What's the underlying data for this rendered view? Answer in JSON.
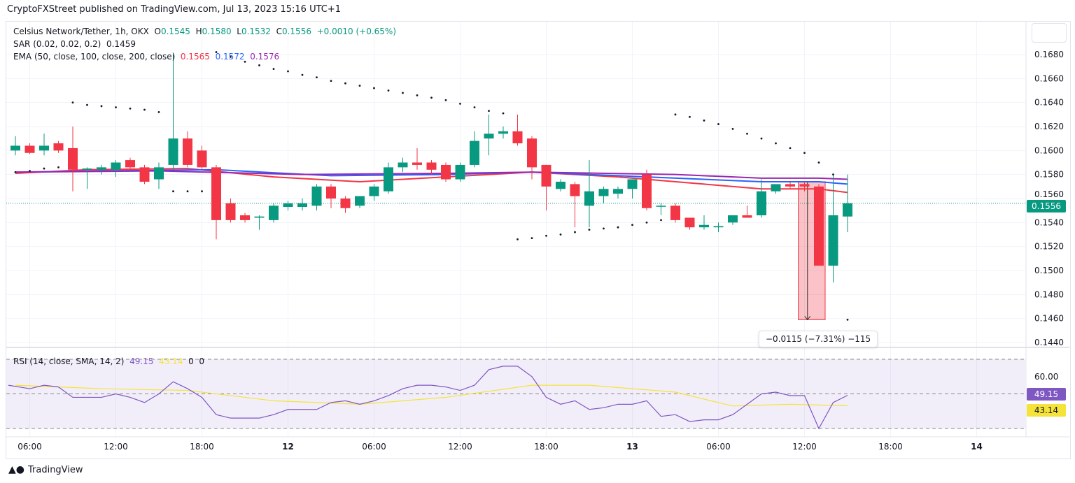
{
  "header": {
    "publisher": "CryptoFXStreet published on TradingView.com, Jul 13, 2023 15:16 UTC+1"
  },
  "legend": {
    "symbol": "Celsius Network/Tether, 1h, OKX",
    "o_label": "O",
    "o": "0.1545",
    "h_label": "H",
    "h": "0.1580",
    "l_label": "L",
    "l": "0.1532",
    "c_label": "C",
    "c": "0.1556",
    "change": "+0.0010 (+0.65%)",
    "sar_label": "SAR (0.02, 0.02, 0.2)",
    "sar": "0.1459",
    "ema_label": "EMA (50, close, 100, close, 200, close)",
    "ema50": "0.1565",
    "ema100": "0.1572",
    "ema200": "0.1576",
    "rsi_label": "RSI (14, close, SMA, 14, 2)",
    "rsi": "49.15",
    "rsi_sma": "43.14",
    "rsi_x1": "0",
    "rsi_x2": "0"
  },
  "measure": {
    "text": "−0.0115 (−7.31%) −115"
  },
  "price_tag": "0.1556",
  "rsi_tag": "49.15",
  "rsi_sma_tag": "43.14",
  "footer": {
    "brand": "TradingView"
  },
  "colors": {
    "up": "#089981",
    "down": "#f23645",
    "ema50": "#f23645",
    "ema100": "#2962ff",
    "ema200": "#9c27b0",
    "rsi": "#7e57c2",
    "rsi_sma": "#f5e33a"
  },
  "chart_data": [
    {
      "type": "candlestick",
      "title": "Celsius Network/Tether, 1h, OKX",
      "ylim": [
        0.1436,
        0.1692
      ],
      "y_ticks": [
        "0.1440",
        "0.1460",
        "0.1480",
        "0.1500",
        "0.1520",
        "0.1540",
        "0.1560",
        "0.1580",
        "0.1600",
        "0.1620",
        "0.1640",
        "0.1660",
        "0.1680"
      ],
      "x_ticks": [
        {
          "label": "06:00",
          "hour": 1
        },
        {
          "label": "12:00",
          "hour": 7
        },
        {
          "label": "18:00",
          "hour": 13
        },
        {
          "label": "12",
          "hour": 19
        },
        {
          "label": "06:00",
          "hour": 25
        },
        {
          "label": "12:00",
          "hour": 31
        },
        {
          "label": "18:00",
          "hour": 37
        },
        {
          "label": "13",
          "hour": 43
        },
        {
          "label": "06:00",
          "hour": 49
        },
        {
          "label": "12:00",
          "hour": 55
        },
        {
          "label": "18:00",
          "hour": 61
        },
        {
          "label": "14",
          "hour": 67
        }
      ],
      "ohlc": [
        [
          0.16,
          0.1612,
          0.1596,
          0.1604
        ],
        [
          0.1604,
          0.1606,
          0.1597,
          0.1598
        ],
        [
          0.16,
          0.1614,
          0.1596,
          0.1604
        ],
        [
          0.1606,
          0.1608,
          0.1598,
          0.16
        ],
        [
          0.1602,
          0.162,
          0.1566,
          0.1584
        ],
        [
          0.1584,
          0.1586,
          0.1568,
          0.1585
        ],
        [
          0.1584,
          0.1588,
          0.158,
          0.1586
        ],
        [
          0.1584,
          0.1592,
          0.1578,
          0.159
        ],
        [
          0.1592,
          0.1594,
          0.1584,
          0.1586
        ],
        [
          0.1586,
          0.1588,
          0.1572,
          0.1574
        ],
        [
          0.1576,
          0.159,
          0.1568,
          0.1586
        ],
        [
          0.1588,
          0.168,
          0.1584,
          0.161
        ],
        [
          0.161,
          0.1616,
          0.1586,
          0.1588
        ],
        [
          0.16,
          0.1604,
          0.1584,
          0.1586
        ],
        [
          0.1586,
          0.1588,
          0.1526,
          0.1542
        ],
        [
          0.1556,
          0.156,
          0.154,
          0.1542
        ],
        [
          0.1546,
          0.1548,
          0.154,
          0.1542
        ],
        [
          0.1544,
          0.1546,
          0.1534,
          0.1545
        ],
        [
          0.1542,
          0.1556,
          0.154,
          0.1554
        ],
        [
          0.1553,
          0.1558,
          0.155,
          0.1556
        ],
        [
          0.1553,
          0.156,
          0.155,
          0.1556
        ],
        [
          0.1554,
          0.1572,
          0.155,
          0.157
        ],
        [
          0.157,
          0.1572,
          0.1552,
          0.156
        ],
        [
          0.156,
          0.1562,
          0.1548,
          0.1552
        ],
        [
          0.1554,
          0.156,
          0.1552,
          0.1562
        ],
        [
          0.1562,
          0.1572,
          0.1558,
          0.157
        ],
        [
          0.1566,
          0.159,
          0.1564,
          0.1586
        ],
        [
          0.1586,
          0.1594,
          0.1582,
          0.159
        ],
        [
          0.159,
          0.1602,
          0.1584,
          0.1588
        ],
        [
          0.159,
          0.1592,
          0.158,
          0.1584
        ],
        [
          0.1588,
          0.159,
          0.1574,
          0.1576
        ],
        [
          0.1576,
          0.159,
          0.1574,
          0.1588
        ],
        [
          0.1588,
          0.1616,
          0.1586,
          0.1608
        ],
        [
          0.161,
          0.163,
          0.1596,
          0.1614
        ],
        [
          0.1614,
          0.162,
          0.161,
          0.1616
        ],
        [
          0.1616,
          0.163,
          0.1604,
          0.1606
        ],
        [
          0.161,
          0.1612,
          0.1576,
          0.1586
        ],
        [
          0.1588,
          0.1588,
          0.155,
          0.157
        ],
        [
          0.1568,
          0.1576,
          0.1566,
          0.1574
        ],
        [
          0.1572,
          0.1574,
          0.1536,
          0.1562
        ],
        [
          0.1554,
          0.1592,
          0.1536,
          0.1566
        ],
        [
          0.1562,
          0.157,
          0.1556,
          0.1568
        ],
        [
          0.1564,
          0.157,
          0.156,
          0.1568
        ],
        [
          0.1568,
          0.1576,
          0.156,
          0.1576
        ],
        [
          0.158,
          0.1584,
          0.155,
          0.1552
        ],
        [
          0.1554,
          0.1556,
          0.1546,
          0.1554
        ],
        [
          0.1554,
          0.1556,
          0.154,
          0.1542
        ],
        [
          0.1544,
          0.1544,
          0.1534,
          0.1536
        ],
        [
          0.1536,
          0.1546,
          0.1534,
          0.1538
        ],
        [
          0.1536,
          0.154,
          0.1532,
          0.1537
        ],
        [
          0.154,
          0.1546,
          0.1538,
          0.1546
        ],
        [
          0.1546,
          0.1554,
          0.1544,
          0.1544
        ],
        [
          0.1546,
          0.1576,
          0.1544,
          0.1566
        ],
        [
          0.1566,
          0.1572,
          0.1564,
          0.1572
        ],
        [
          0.1572,
          0.1574,
          0.1568,
          0.157
        ],
        [
          0.1572,
          0.1574,
          0.1566,
          0.157
        ],
        [
          0.157,
          0.1572,
          0.1504,
          0.1504
        ],
        [
          0.1504,
          0.158,
          0.149,
          0.1546
        ],
        [
          0.1545,
          0.158,
          0.1532,
          0.1556
        ]
      ],
      "sar": [
        0.1582,
        0.1583,
        0.1585,
        0.1586,
        0.164,
        0.1638,
        0.1637,
        0.1636,
        0.1635,
        0.1634,
        0.1632,
        0.1566,
        0.1566,
        0.1566,
        0.1682,
        0.1678,
        0.1674,
        0.1671,
        0.1668,
        0.1666,
        0.1663,
        0.1661,
        0.1658,
        0.1656,
        0.1654,
        0.1652,
        0.165,
        0.1648,
        0.1646,
        0.1644,
        0.1642,
        0.1639,
        0.1636,
        0.1633,
        0.1631,
        0.1526,
        0.1527,
        0.1529,
        0.153,
        0.1532,
        0.1534,
        0.1535,
        0.1536,
        0.1538,
        0.154,
        0.1542,
        0.163,
        0.1628,
        0.1625,
        0.1622,
        0.1618,
        0.1614,
        0.161,
        0.1606,
        0.1602,
        0.1598,
        0.159,
        0.158,
        0.1459
      ],
      "ema": [
        {
          "name": "EMA 50",
          "points": [
            [
              0,
              0.1581
            ],
            [
              5,
              0.1584
            ],
            [
              12,
              0.1585
            ],
            [
              18,
              0.1578
            ],
            [
              24,
              0.1574
            ],
            [
              30,
              0.1578
            ],
            [
              36,
              0.1582
            ],
            [
              42,
              0.1578
            ],
            [
              48,
              0.1572
            ],
            [
              52,
              0.1568
            ],
            [
              56,
              0.1568
            ],
            [
              58,
              0.1565
            ]
          ]
        },
        {
          "name": "EMA 100",
          "points": [
            [
              0,
              0.1582
            ],
            [
              6,
              0.1583
            ],
            [
              14,
              0.1584
            ],
            [
              22,
              0.1579
            ],
            [
              30,
              0.158
            ],
            [
              36,
              0.1582
            ],
            [
              44,
              0.1578
            ],
            [
              52,
              0.1574
            ],
            [
              56,
              0.1574
            ],
            [
              58,
              0.1572
            ]
          ]
        },
        {
          "name": "EMA 200",
          "points": [
            [
              0,
              0.1582
            ],
            [
              10,
              0.1583
            ],
            [
              20,
              0.158
            ],
            [
              30,
              0.1581
            ],
            [
              36,
              0.1582
            ],
            [
              46,
              0.158
            ],
            [
              52,
              0.1577
            ],
            [
              56,
              0.1577
            ],
            [
              58,
              0.1576
            ]
          ]
        }
      ],
      "measure": {
        "from_hour": 55,
        "to_hour": 56,
        "from": 0.1574,
        "to": 0.1459
      }
    },
    {
      "type": "line",
      "title": "RSI (14, close, SMA, 14, 2)",
      "ylim": [
        26,
        74
      ],
      "y_ticks": [
        "60.00"
      ],
      "bands": [
        70,
        50,
        30
      ],
      "rsi": [
        55,
        53,
        55,
        54,
        48,
        48,
        48,
        50,
        48,
        45,
        50,
        57,
        53,
        48,
        38,
        36,
        36,
        36,
        38,
        41,
        41,
        41,
        45,
        46,
        44,
        46,
        49,
        53,
        55,
        55,
        54,
        52,
        55,
        64,
        66,
        66,
        60,
        48,
        44,
        46,
        41,
        42,
        44,
        44,
        46,
        37,
        38,
        34,
        35,
        35,
        38,
        44,
        50,
        51,
        49,
        49,
        30,
        45,
        49.15
      ],
      "sma": [
        [
          0,
          55
        ],
        [
          6,
          53
        ],
        [
          12,
          52
        ],
        [
          18,
          46
        ],
        [
          24,
          44
        ],
        [
          30,
          48
        ],
        [
          36,
          55
        ],
        [
          40,
          55
        ],
        [
          46,
          51
        ],
        [
          50,
          43
        ],
        [
          54,
          44
        ],
        [
          58,
          43.14
        ]
      ]
    }
  ]
}
